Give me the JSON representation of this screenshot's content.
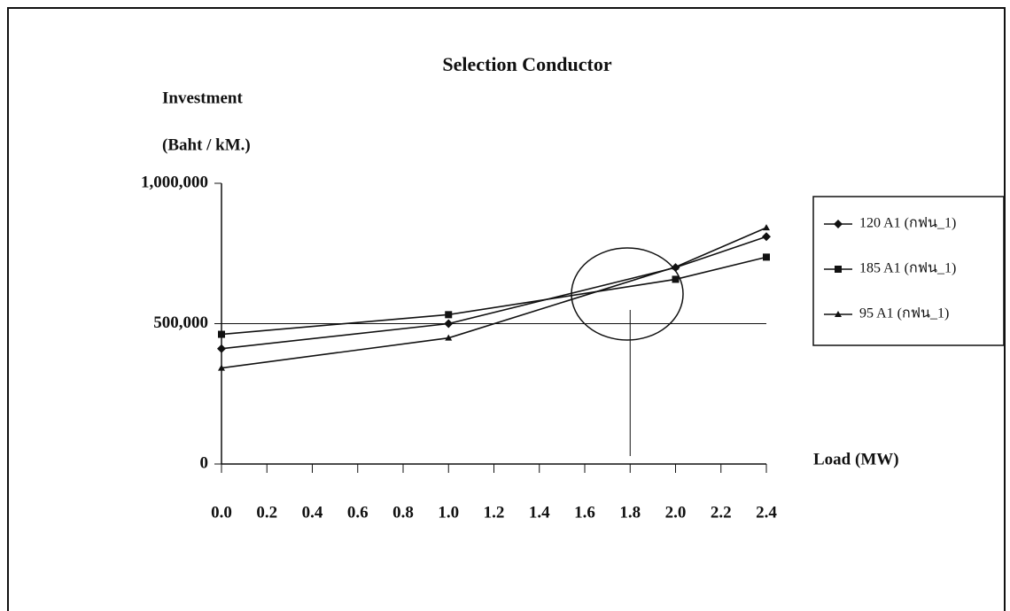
{
  "chart_data": {
    "type": "line",
    "title": "Selection Conductor",
    "y_label": [
      "Investment",
      "(Baht / kM.)"
    ],
    "x_label": "Load (MW)",
    "x": [
      0,
      1,
      2,
      2.4
    ],
    "series": [
      {
        "name": "120 A1 (กฟน_1)",
        "color": "#111111",
        "marker": "diamond",
        "values": [
          411000,
          500000,
          700000,
          810000
        ]
      },
      {
        "name": "185 A1 (กฟน_1)",
        "color": "#111111",
        "marker": "square",
        "values": [
          462000,
          532000,
          658000,
          737000
        ]
      },
      {
        "name": "95 A1 (กฟน_1)",
        "color": "#111111",
        "marker": "triangle",
        "values": [
          342000,
          449000,
          702000,
          842000
        ]
      }
    ],
    "xlim": [
      0,
      2.4
    ],
    "xticks": [
      {
        "value": 0,
        "label": "0.0"
      },
      {
        "value": 0.2,
        "label": "0.2"
      },
      {
        "value": 0.4,
        "label": "0.4"
      },
      {
        "value": 0.6,
        "label": "0.6"
      },
      {
        "value": 0.8,
        "label": "0.8"
      },
      {
        "value": 1,
        "label": "1.0"
      },
      {
        "value": 1.2,
        "label": "1.2"
      },
      {
        "value": 1.4,
        "label": "1.4"
      },
      {
        "value": 1.6,
        "label": "1.6"
      },
      {
        "value": 1.8,
        "label": "1.8"
      },
      {
        "value": 2,
        "label": "2.0"
      },
      {
        "value": 2.2,
        "label": "2.2"
      },
      {
        "value": 2.4,
        "label": "2.4"
      }
    ],
    "ylim": [
      0,
      1000000
    ],
    "yticks": [
      0,
      {
        "value": 500000,
        "label": "500,000"
      },
      {
        "value": 1000000,
        "label": "1,000,000"
      }
    ],
    "hline": 500000,
    "vline": 1.8,
    "legend": "right"
  }
}
